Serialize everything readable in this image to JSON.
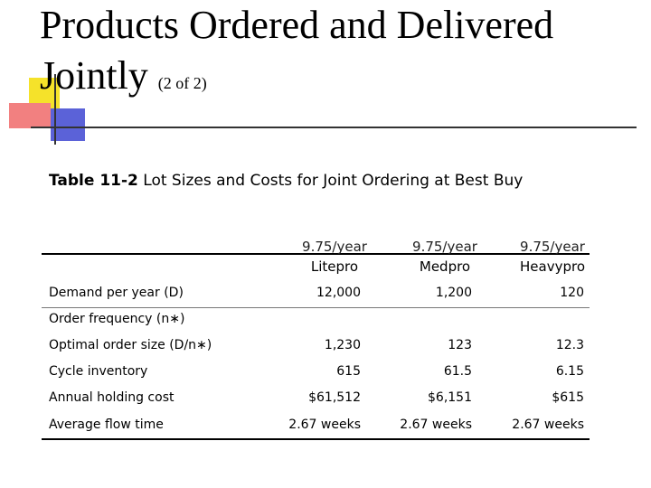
{
  "slide": {
    "title_main": "Products Ordered and Delivered Jointly",
    "title_sub": "(2 of 2)",
    "caption_bold": "Table 11-2",
    "caption_rest": "Lot Sizes and Costs for Joint Ordering at Best Buy"
  },
  "table": {
    "columns": [
      {
        "cost": "9.75/year",
        "name": "Litepro"
      },
      {
        "cost": "9.75/year",
        "name": "Medpro"
      },
      {
        "cost": "9.75/year",
        "name": "Heavypro"
      }
    ],
    "rows": [
      {
        "label": "Demand per year (D)",
        "values": [
          "12,000",
          "1,200",
          "120"
        ]
      },
      {
        "label": "Order frequency (n∗)",
        "values": [
          "",
          "",
          ""
        ]
      },
      {
        "label": "Optimal order size (D/n∗)",
        "values": [
          "1,230",
          "123",
          "12.3"
        ]
      },
      {
        "label": "Cycle inventory",
        "values": [
          "615",
          "61.5",
          "6.15"
        ]
      },
      {
        "label": "Annual holding cost",
        "values": [
          "$61,512",
          "$6,151",
          "$615"
        ]
      },
      {
        "label": "Average flow time",
        "values": [
          "2.67 weeks",
          "2.67 weeks",
          "2.67 weeks"
        ]
      }
    ]
  },
  "colors": {
    "deco_yellow": "#f5e22a",
    "deco_red": "#f28080",
    "deco_blue": "#5b62d8"
  }
}
